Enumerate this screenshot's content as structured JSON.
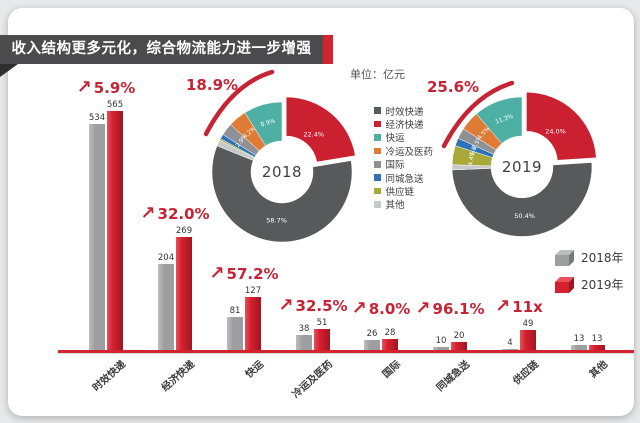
{
  "banner": {
    "title": "收入结构更多元化，综合物流能力进一步增强"
  },
  "unit_label": "单位：亿元",
  "colors": {
    "red_primary": "#c62434",
    "bar_red": "#d4222e",
    "banner_bg": "#4b4b4d",
    "banner_cap": "#d2232e",
    "banner_fold": "#2e2e30",
    "card_bg": "#ffffff",
    "page_bg": "#e8e9ea"
  },
  "category_legend": [
    {
      "label": "时效快递",
      "color": "#58595b"
    },
    {
      "label": "经济快递",
      "color": "#cb2030"
    },
    {
      "label": "快运",
      "color": "#4eb0a5"
    },
    {
      "label": "冷运及医药",
      "color": "#df7b35"
    },
    {
      "label": "国际",
      "color": "#8e9093"
    },
    {
      "label": "同城急送",
      "color": "#2d72b7"
    },
    {
      "label": "供应链",
      "color": "#a8a939"
    },
    {
      "label": "其他",
      "color": "#c8c9cb"
    }
  ],
  "series_legend": [
    {
      "label": "2018年",
      "color": "#9d9ea0",
      "color_top": "#bcbdbf",
      "color_side": "#77787b"
    },
    {
      "label": "2019年",
      "color": "#d6202f",
      "color_top": "#e8505b",
      "color_side": "#a01522"
    }
  ],
  "chart_data": [
    {
      "type": "pie",
      "year": "2018",
      "growth_label": "18.9%",
      "slices": [
        {
          "label": "时效快递",
          "value": 58.7
        },
        {
          "label": "经济快递",
          "value": 22.4
        },
        {
          "label": "快运",
          "value": 8.9
        },
        {
          "label": "冷运及医药",
          "value": 4.2
        },
        {
          "label": "国际",
          "value": 2.9
        },
        {
          "label": "同城急送",
          "value": 1.1
        },
        {
          "label": "供应链",
          "value": 0.4
        },
        {
          "label": "其他",
          "value": 1.4
        }
      ]
    },
    {
      "type": "pie",
      "year": "2019",
      "growth_label": "25.6%",
      "slices": [
        {
          "label": "时效快递",
          "value": 50.4
        },
        {
          "label": "经济快递",
          "value": 24.0
        },
        {
          "label": "快运",
          "value": 11.3
        },
        {
          "label": "冷运及医药",
          "value": 4.5
        },
        {
          "label": "国际",
          "value": 2.5
        },
        {
          "label": "同城急送",
          "value": 1.8
        },
        {
          "label": "供应链",
          "value": 4.4
        },
        {
          "label": "其他",
          "value": 1.2
        }
      ]
    },
    {
      "type": "bar",
      "title": "",
      "ylabel": "亿元",
      "categories": [
        "时效快递",
        "经济快递",
        "快运",
        "冷运及医药",
        "国际",
        "同城急送",
        "供应链",
        "其他"
      ],
      "series": [
        {
          "name": "2018年",
          "values": [
            534,
            204,
            81,
            38,
            26,
            10,
            4,
            13
          ]
        },
        {
          "name": "2019年",
          "values": [
            565,
            269,
            127,
            51,
            28,
            20,
            49,
            13
          ]
        }
      ],
      "growth_labels": [
        "5.9%",
        "32.0%",
        "57.2%",
        "32.5%",
        "8.0%",
        "96.1%",
        "11x",
        ""
      ]
    }
  ]
}
